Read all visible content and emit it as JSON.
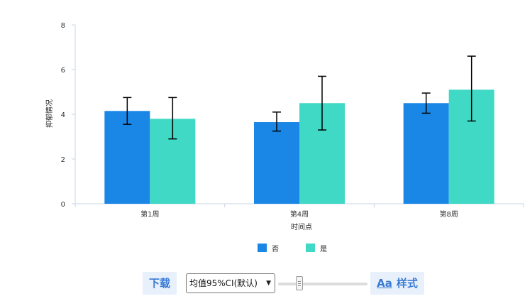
{
  "chart_data": {
    "type": "bar",
    "categories": [
      "第1周",
      "第4周",
      "第8周"
    ],
    "series": [
      {
        "name": "否",
        "color": "#1a87e6",
        "values": [
          4.15,
          3.65,
          4.5
        ],
        "ci_low": [
          3.55,
          3.25,
          4.05
        ],
        "ci_high": [
          4.75,
          4.1,
          4.95
        ]
      },
      {
        "name": "是",
        "color": "#40d9c5",
        "values": [
          3.8,
          4.5,
          5.1
        ],
        "ci_low": [
          2.9,
          3.3,
          3.7
        ],
        "ci_high": [
          4.75,
          5.7,
          6.6
        ]
      }
    ],
    "xlabel": "时间点",
    "ylabel": "抑郁情况",
    "ylim": [
      0,
      8
    ],
    "yticks": [
      0,
      2,
      4,
      6,
      8
    ],
    "legend_position": "bottom-center",
    "grid": false
  },
  "controls": {
    "download_label": "下载",
    "ci_select_value": "均值95%CI(默认)",
    "ci_select_arrow": "▼",
    "style_icon": "Aa",
    "style_label": "样式"
  }
}
